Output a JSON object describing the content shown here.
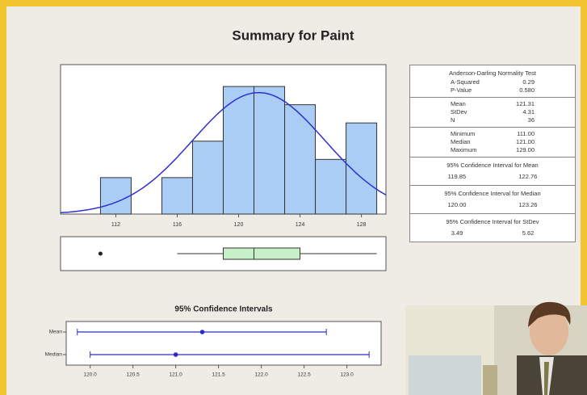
{
  "title": "Summary for Paint",
  "chart_data": [
    {
      "type": "histogram",
      "bins": [
        111,
        113,
        115,
        117,
        119,
        121,
        123,
        125,
        127,
        129
      ],
      "values": [
        2,
        0,
        2,
        4,
        7,
        7,
        6,
        3,
        5
      ],
      "color": "#a9cdf5",
      "curve_color": "#3030d0",
      "xlim": [
        108.4,
        129.6
      ],
      "xticks": [
        112,
        116,
        120,
        124,
        128
      ],
      "ylim": [
        0,
        8.2
      ]
    },
    {
      "type": "boxplot",
      "whisker_low": 116,
      "q1": 119,
      "median": 121,
      "q3": 124,
      "whisker_high": 129,
      "outliers": [
        111
      ],
      "color": "#c8f0c8",
      "xlim": [
        108.4,
        129.6
      ]
    },
    {
      "type": "interval",
      "title": "95% Confidence Intervals",
      "categories": [
        "Mean",
        "Median"
      ],
      "values": [
        121.31,
        121.0
      ],
      "lower": [
        119.85,
        120.0
      ],
      "upper": [
        122.76,
        123.26
      ],
      "color": "#2a2acc",
      "xlim": [
        119.72,
        123.4
      ],
      "xticks": [
        {
          "value": 120,
          "label": "120.0"
        },
        {
          "value": 120.5,
          "label": "120.5"
        },
        {
          "value": 121,
          "label": "121.0"
        },
        {
          "value": 121.5,
          "label": "121.5"
        },
        {
          "value": 122,
          "label": "122.0"
        },
        {
          "value": 122.5,
          "label": "122.5"
        },
        {
          "value": 123,
          "label": "123.0"
        }
      ]
    }
  ],
  "stats": {
    "sections": [
      {
        "heading": "Anderson-Darling Normality Test",
        "rows": [
          [
            "A-Squared",
            "0.29"
          ],
          [
            "P-Value",
            "0.580"
          ]
        ]
      },
      {
        "rows": [
          [
            "Mean",
            "121.31"
          ],
          [
            "StDev",
            "4.31"
          ],
          [
            "N",
            "36"
          ]
        ]
      },
      {
        "rows": [
          [
            "Minimum",
            "111.00"
          ],
          [
            "Median",
            "121.00"
          ],
          [
            "Maximum",
            "129.00"
          ]
        ]
      },
      {
        "heading": "95% Confidence Interval for Mean",
        "ci": [
          "119.85",
          "122.76"
        ]
      },
      {
        "heading": "95% Confidence Interval for Median",
        "ci": [
          "120.00",
          "123.26"
        ]
      },
      {
        "heading": "95% Confidence Interval for StDev",
        "ci": [
          "3.49",
          "5.62"
        ]
      }
    ]
  }
}
